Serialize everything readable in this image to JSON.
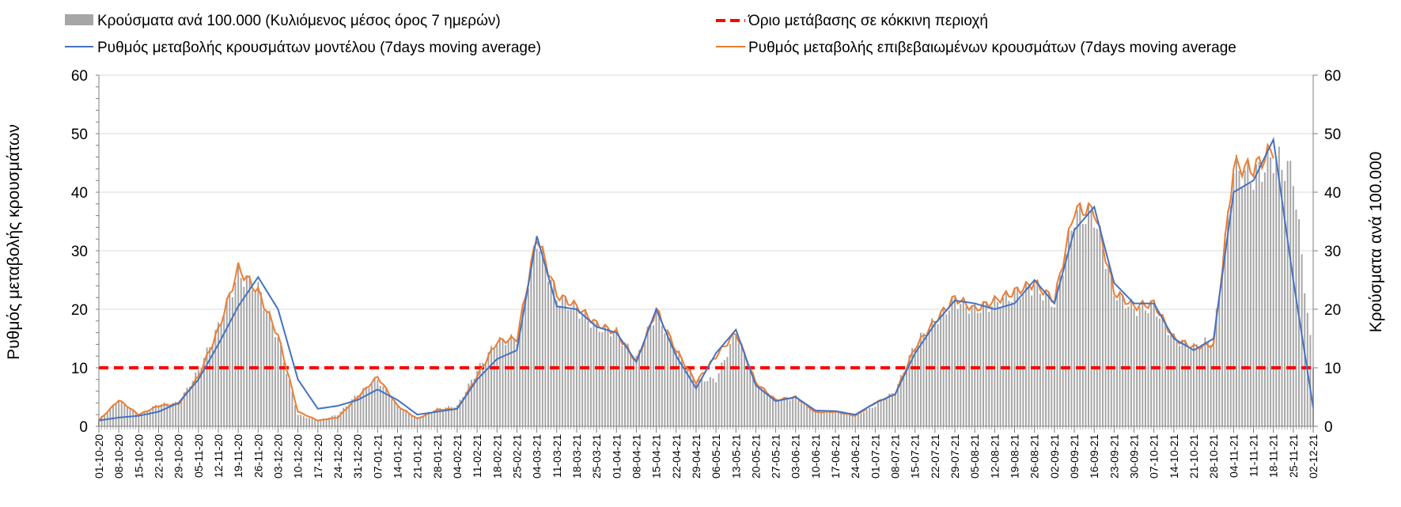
{
  "chart_data": {
    "type": "bar+line",
    "title": "",
    "ylabel_left": "Ρυθμός μεταβολής κρουσμάτων",
    "ylabel_right": "Κρούσματα ανά 100.000",
    "ylim": [
      0,
      60
    ],
    "yticks": [
      0,
      10,
      20,
      30,
      40,
      50,
      60
    ],
    "grid": "horizontal",
    "legend": {
      "placement": "top",
      "items": [
        {
          "key": "bars",
          "label": "Κρούσματα ανά 100.000 (Κυλιόμενος μέσος όρος 7 ημερών)",
          "symbol": "bar",
          "color": "#a6a6a6"
        },
        {
          "key": "threshold",
          "label": "Όριο μετάβασης σε κόκκινη περιοχή",
          "symbol": "dash",
          "color": "#ff0000"
        },
        {
          "key": "model",
          "label": "Ρυθμός μεταβολής κρουσμάτων μοντέλου (7days moving average)",
          "symbol": "line",
          "color": "#4472c4"
        },
        {
          "key": "confirmed",
          "label": "Ρυθμός μεταβολής επιβεβαιωμένων κρουσμάτων (7days moving average",
          "symbol": "line",
          "color": "#ed7d31"
        }
      ]
    },
    "x_labels": [
      "01-10-20",
      "08-10-20",
      "15-10-20",
      "22-10-20",
      "29-10-20",
      "05-11-20",
      "12-11-20",
      "19-11-20",
      "26-11-20",
      "03-12-20",
      "10-12-20",
      "17-12-20",
      "24-12-20",
      "31-12-20",
      "07-01-21",
      "14-01-21",
      "21-01-21",
      "28-01-21",
      "04-02-21",
      "11-02-21",
      "18-02-21",
      "25-02-21",
      "04-03-21",
      "11-03-21",
      "18-03-21",
      "25-03-21",
      "01-04-21",
      "08-04-21",
      "15-04-21",
      "22-04-21",
      "29-04-21",
      "06-05-21",
      "13-05-21",
      "20-05-21",
      "27-05-21",
      "03-06-21",
      "10-06-21",
      "17-06-21",
      "24-06-21",
      "01-07-21",
      "08-07-21",
      "15-07-21",
      "22-07-21",
      "29-07-21",
      "05-08-21",
      "12-08-21",
      "19-08-21",
      "26-08-21",
      "02-09-21",
      "09-09-21",
      "16-09-21",
      "23-09-21",
      "30-09-21",
      "07-10-21",
      "14-10-21",
      "21-10-21",
      "28-10-21",
      "04-11-21",
      "11-11-21",
      "18-11-21",
      "25-11-21",
      "02-12-21"
    ],
    "threshold": 10,
    "bars_weekly": [
      1.2,
      4.5,
      2.0,
      3.8,
      4.0,
      9.5,
      17.0,
      26.0,
      23.5,
      15.0,
      2.0,
      1.0,
      2.0,
      5.5,
      8.0,
      3.5,
      1.5,
      3.0,
      3.5,
      9.5,
      14.5,
      15.0,
      32.0,
      22.0,
      20.0,
      17.0,
      16.0,
      11.5,
      19.5,
      13.0,
      8.0,
      8.0,
      16.0,
      7.5,
      4.5,
      4.8,
      2.5,
      2.5,
      1.8,
      3.5,
      6.0,
      14.0,
      18.0,
      21.5,
      20.0,
      21.0,
      22.5,
      24.0,
      21.0,
      36.0,
      36.0,
      23.0,
      20.0,
      20.5,
      15.0,
      13.5,
      15.0,
      44.0,
      42.5,
      46.0,
      43.0,
      10.0
    ],
    "model_weekly": [
      1.0,
      1.5,
      1.8,
      2.5,
      4.0,
      8.0,
      14.0,
      20.5,
      25.5,
      20.0,
      8.0,
      3.0,
      3.5,
      4.5,
      6.3,
      4.5,
      2.0,
      2.5,
      3.0,
      8.0,
      11.5,
      13.0,
      32.5,
      20.5,
      20.0,
      17.0,
      16.0,
      11.0,
      20.0,
      12.0,
      6.5,
      12.5,
      16.5,
      7.0,
      4.3,
      5.0,
      2.7,
      2.6,
      2.0,
      4.0,
      5.5,
      12.5,
      17.5,
      21.5,
      21.0,
      20.0,
      21.0,
      25.0,
      21.0,
      33.5,
      37.5,
      24.5,
      21.0,
      21.0,
      15.0,
      13.0,
      15.0,
      40.0,
      42.0,
      49.0,
      25.0,
      3.2
    ],
    "confirmed_weekly": [
      1.0,
      4.5,
      2.0,
      3.5,
      3.8,
      8.5,
      16.5,
      27.0,
      23.0,
      15.5,
      2.5,
      1.0,
      1.5,
      5.0,
      8.5,
      3.5,
      1.3,
      2.8,
      3.0,
      8.5,
      14.5,
      15.0,
      32.5,
      22.5,
      20.5,
      17.5,
      16.0,
      11.0,
      20.0,
      13.0,
      7.5,
      12.0,
      16.0,
      7.5,
      4.5,
      5.0,
      2.4,
      2.5,
      1.8,
      4.0,
      5.5,
      13.5,
      18.0,
      22.0,
      20.0,
      21.5,
      23.0,
      24.5,
      21.5,
      37.0,
      37.0,
      23.0,
      20.5,
      21.0,
      15.0,
      13.5,
      14.0,
      44.5,
      44.0,
      47.5
    ]
  }
}
